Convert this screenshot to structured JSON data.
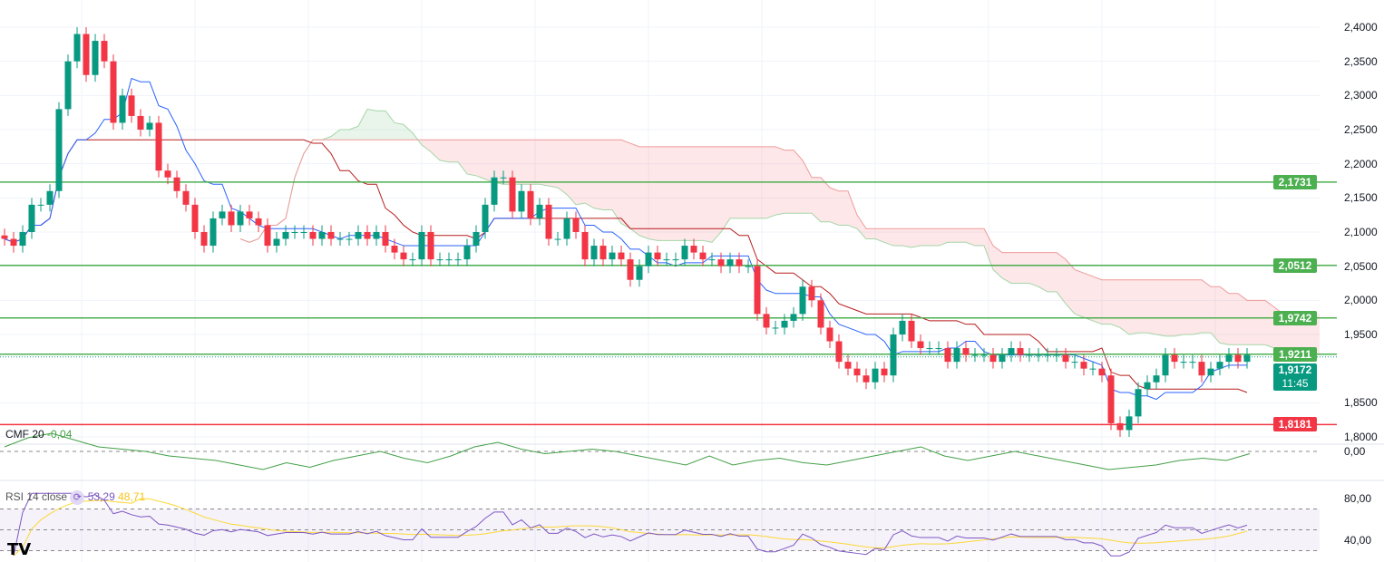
{
  "chart_data": {
    "type": "candlestick",
    "title": "",
    "price_axis": {
      "ticks": [
        "2,4000",
        "2,3500",
        "2,3000",
        "2,2500",
        "2,2000",
        "2,1500",
        "2,1000",
        "2,0500",
        "2,0000",
        "1,9500",
        "1,8500",
        "1,8000"
      ],
      "values": [
        2.4,
        2.35,
        2.3,
        2.25,
        2.2,
        2.15,
        2.1,
        2.05,
        2.0,
        1.95,
        1.85,
        1.8
      ],
      "ylim": [
        1.8,
        2.4
      ]
    },
    "closes": [
      2.09,
      2.08,
      2.1,
      2.14,
      2.14,
      2.16,
      2.28,
      2.35,
      2.39,
      2.33,
      2.38,
      2.35,
      2.26,
      2.3,
      2.27,
      2.25,
      2.26,
      2.19,
      2.18,
      2.16,
      2.14,
      2.1,
      2.08,
      2.12,
      2.13,
      2.11,
      2.13,
      2.12,
      2.11,
      2.08,
      2.09,
      2.1,
      2.1,
      2.1,
      2.09,
      2.1,
      2.09,
      2.09,
      2.09,
      2.1,
      2.09,
      2.1,
      2.08,
      2.07,
      2.06,
      2.06,
      2.1,
      2.06,
      2.06,
      2.06,
      2.06,
      2.08,
      2.1,
      2.14,
      2.18,
      2.18,
      2.13,
      2.16,
      2.12,
      2.14,
      2.09,
      2.09,
      2.12,
      2.1,
      2.06,
      2.08,
      2.06,
      2.07,
      2.06,
      2.03,
      2.05,
      2.07,
      2.06,
      2.06,
      2.06,
      2.08,
      2.07,
      2.06,
      2.06,
      2.05,
      2.06,
      2.05,
      2.05,
      1.98,
      1.96,
      1.96,
      1.97,
      1.98,
      2.02,
      2.0,
      1.96,
      1.94,
      1.91,
      1.9,
      1.89,
      1.88,
      1.9,
      1.89,
      1.95,
      1.97,
      1.94,
      1.93,
      1.93,
      1.93,
      1.91,
      1.93,
      1.92,
      1.92,
      1.92,
      1.91,
      1.92,
      1.93,
      1.92,
      1.92,
      1.92,
      1.92,
      1.92,
      1.91,
      1.91,
      1.9,
      1.9,
      1.89,
      1.82,
      1.81,
      1.83,
      1.87,
      1.88,
      1.89,
      1.92,
      1.91,
      1.91,
      1.91,
      1.89,
      1.9,
      1.91,
      1.92,
      1.91,
      1.92
    ],
    "levels": [
      {
        "value": 2.1731,
        "label": "2,1731",
        "color": "#4caf50"
      },
      {
        "value": 2.0512,
        "label": "2,0512",
        "color": "#4caf50"
      },
      {
        "value": 1.9742,
        "label": "1,9742",
        "color": "#4caf50"
      },
      {
        "value": 1.9211,
        "label": "1,9211",
        "color": "#4caf50"
      },
      {
        "value": 1.8181,
        "label": "1,8181",
        "color": "#f23645"
      }
    ],
    "current_price": {
      "value": 1.9172,
      "label": "1,9172",
      "countdown": "11:45",
      "color": "#089981"
    },
    "cmf": {
      "name": "CMF",
      "period": "20",
      "value": "-0,04",
      "axis_label": "0,00",
      "values": [
        0.02,
        0.06,
        0.08,
        0.05,
        0.02,
        0.01,
        0.0,
        -0.02,
        -0.03,
        -0.04,
        -0.06,
        -0.08,
        -0.05,
        -0.07,
        -0.04,
        -0.02,
        0.0,
        -0.03,
        -0.05,
        -0.02,
        0.02,
        0.04,
        0.01,
        -0.01,
        0.0,
        0.01,
        0.0,
        -0.02,
        -0.04,
        -0.06,
        -0.02,
        -0.06,
        -0.04,
        -0.03,
        -0.05,
        -0.06,
        -0.04,
        -0.02,
        0.0,
        0.02,
        -0.02,
        -0.04,
        -0.02,
        0.0,
        -0.02,
        -0.04,
        -0.06,
        -0.08,
        -0.07,
        -0.06,
        -0.04,
        -0.03,
        -0.04,
        -0.01
      ]
    },
    "rsi": {
      "name": "RSI",
      "params": "14 close",
      "value": "53,29",
      "ma_value": "48,71",
      "ticks": [
        "80,00",
        "40,00"
      ],
      "upper": 70,
      "middle": 50,
      "lower": 30
    }
  },
  "colors": {
    "up": "#089981",
    "down": "#f23645",
    "tenkan": "#2962ff",
    "kijun": "#b71c1c",
    "rsi": "#7e57c2",
    "rsi_ma": "#fdd835",
    "cmf": "#43a047"
  }
}
